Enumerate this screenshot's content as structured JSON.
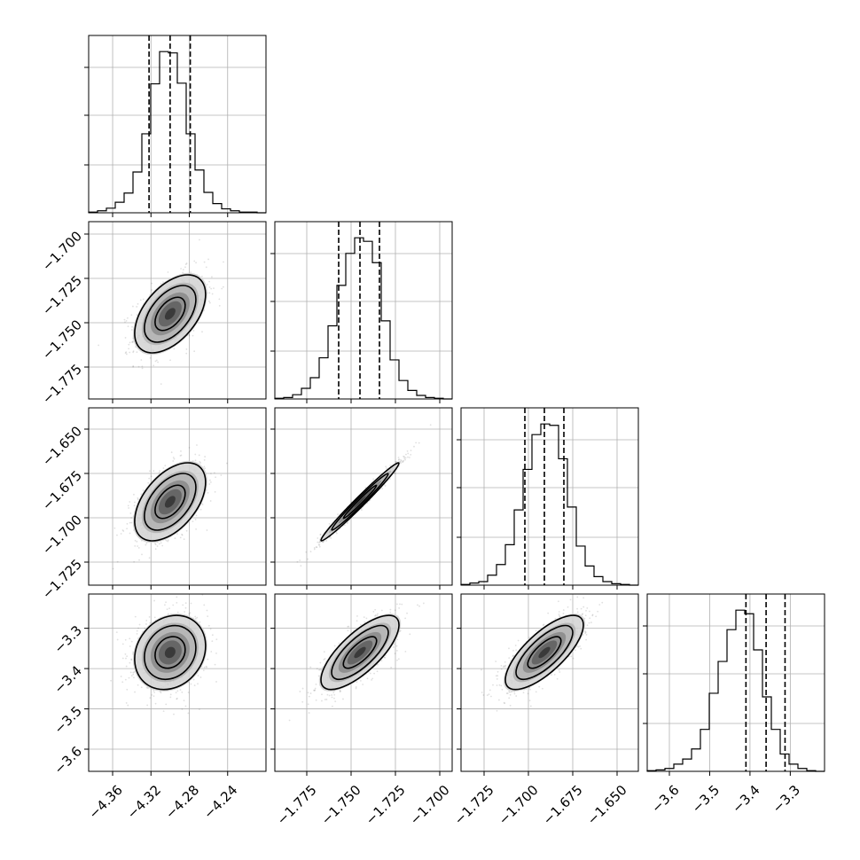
{
  "chart_data": {
    "type": "corner",
    "parameters": [
      {
        "range": [
          -4.385,
          -4.2
        ],
        "ticks": [
          -4.36,
          -4.32,
          -4.28,
          -4.24
        ],
        "tick_labels": [
          "−4.36",
          "−4.32",
          "−4.28",
          "−4.24"
        ],
        "mean": -4.3,
        "sd": 0.0185,
        "quantiles": [
          -4.322,
          -4.3,
          -4.279
        ],
        "hist_counts": [
          1,
          3,
          7,
          16,
          30,
          62,
          120,
          196,
          245,
          243,
          197,
          120,
          65,
          31,
          14,
          6,
          3,
          1,
          1,
          0
        ]
      },
      {
        "range": [
          -1.793,
          -1.693
        ],
        "ticks": [
          -1.775,
          -1.75,
          -1.725,
          -1.7
        ],
        "tick_labels": [
          "−1.775",
          "−1.750",
          "−1.725",
          "−1.700"
        ],
        "mean": -1.745,
        "sd": 0.011,
        "quantiles": [
          -1.757,
          -1.745,
          -1.734
        ],
        "hist_counts": [
          1,
          2,
          6,
          15,
          30,
          58,
          103,
          160,
          205,
          227,
          222,
          192,
          110,
          55,
          26,
          12,
          5,
          2,
          1,
          0
        ]
      },
      {
        "range": [
          -1.738,
          -1.638
        ],
        "ticks": [
          -1.725,
          -1.7,
          -1.675,
          -1.65
        ],
        "tick_labels": [
          "−1.725",
          "−1.700",
          "−1.675",
          "−1.650"
        ],
        "mean": -1.691,
        "sd": 0.011,
        "quantiles": [
          -1.702,
          -1.691,
          -1.68
        ],
        "hist_counts": [
          1,
          3,
          5,
          14,
          29,
          57,
          106,
          163,
          212,
          227,
          225,
          178,
          110,
          55,
          27,
          12,
          5,
          2,
          1,
          0
        ]
      },
      {
        "range": [
          -3.655,
          -3.215
        ],
        "ticks": [
          -3.6,
          -3.5,
          -3.4,
          -3.3
        ],
        "tick_labels": [
          "−3.6",
          "−3.5",
          "−3.4",
          "−3.3"
        ],
        "mean": -3.36,
        "sd": 0.046,
        "quantiles": [
          -3.41,
          -3.36,
          -3.313
        ],
        "hist_counts": [
          1,
          2,
          4,
          10,
          17,
          31,
          58,
          108,
          152,
          196,
          223,
          218,
          168,
          103,
          58,
          24,
          10,
          4,
          1,
          0
        ]
      }
    ],
    "correlations": [
      [
        1.0,
        0.5,
        0.5,
        0.18
      ],
      [
        0.5,
        1.0,
        0.985,
        0.74
      ],
      [
        0.5,
        0.985,
        1.0,
        0.74
      ],
      [
        0.18,
        0.74,
        0.74,
        1.0
      ]
    ],
    "grid": true,
    "contour_levels": 3,
    "title": "",
    "xlabel": "",
    "ylabel": ""
  }
}
